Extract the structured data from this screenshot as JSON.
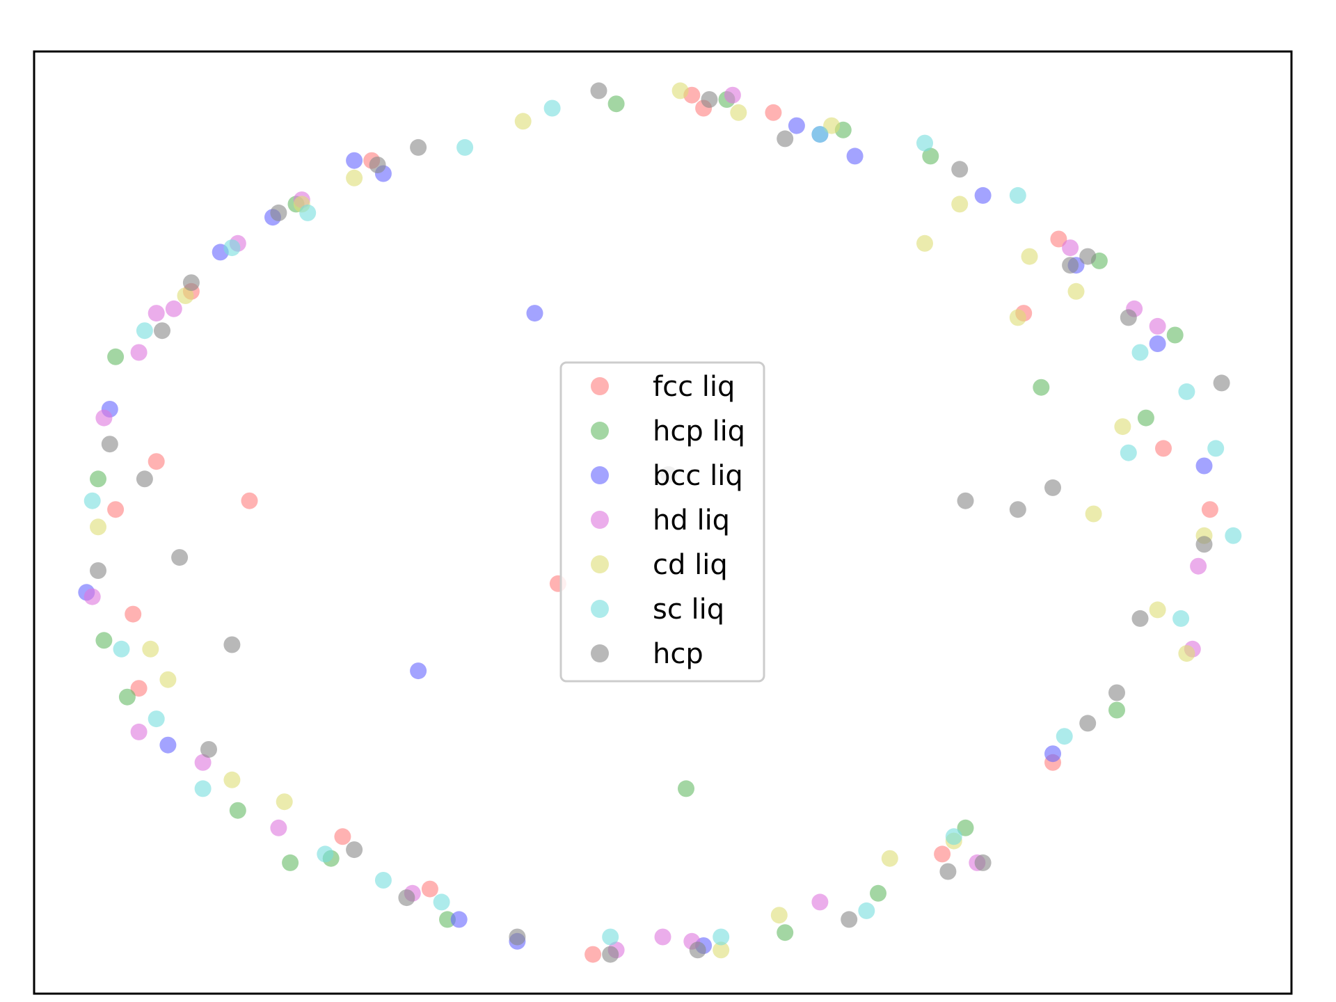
{
  "chart_data": {
    "type": "scatter",
    "title": "",
    "xlabel": "",
    "ylabel": "",
    "grid": false,
    "axes_ticks": false,
    "xlim": [
      -1.08,
      1.08
    ],
    "ylim": [
      -1.08,
      1.08
    ],
    "legend": {
      "position": "center"
    },
    "series": [
      {
        "name": "fcc liq",
        "color": "#ff7f7f",
        "points": [
          [
            -0.87,
            0.14
          ],
          [
            -0.94,
            0.03
          ],
          [
            -0.91,
            -0.21
          ],
          [
            -0.9,
            -0.38
          ],
          [
            -0.55,
            -0.72
          ],
          [
            -0.4,
            -0.84
          ],
          [
            -0.12,
            -0.99
          ],
          [
            0.07,
            0.95
          ],
          [
            0.19,
            0.94
          ],
          [
            0.68,
            0.65
          ],
          [
            0.62,
            0.48
          ],
          [
            0.86,
            0.17
          ],
          [
            0.94,
            0.03
          ],
          [
            0.67,
            -0.55
          ],
          [
            0.48,
            -0.76
          ],
          [
            -0.81,
            0.53
          ],
          [
            -0.5,
            0.83
          ],
          [
            -0.18,
            -0.14
          ],
          [
            0.05,
            0.98
          ],
          [
            -0.71,
            0.05
          ]
        ]
      },
      {
        "name": "hcp liq",
        "color": "#66bb66",
        "points": [
          [
            -0.63,
            0.73
          ],
          [
            -0.94,
            0.38
          ],
          [
            -0.96,
            -0.27
          ],
          [
            -0.92,
            -0.4
          ],
          [
            -0.73,
            -0.66
          ],
          [
            -0.64,
            -0.78
          ],
          [
            -0.37,
            -0.91
          ],
          [
            -0.08,
            0.96
          ],
          [
            0.11,
            0.97
          ],
          [
            0.31,
            0.9
          ],
          [
            0.46,
            0.84
          ],
          [
            0.75,
            0.6
          ],
          [
            0.88,
            0.43
          ],
          [
            0.83,
            0.24
          ],
          [
            0.65,
            0.31
          ],
          [
            0.78,
            -0.43
          ],
          [
            0.52,
            -0.7
          ],
          [
            0.21,
            -0.94
          ],
          [
            0.04,
            -0.61
          ],
          [
            -0.57,
            -0.77
          ],
          [
            -0.97,
            0.1
          ],
          [
            0.37,
            -0.85
          ]
        ]
      },
      {
        "name": "bcc liq",
        "color": "#6666ff",
        "points": [
          [
            -0.67,
            0.7
          ],
          [
            -0.76,
            0.62
          ],
          [
            -0.53,
            0.83
          ],
          [
            -0.99,
            -0.16
          ],
          [
            -0.85,
            -0.51
          ],
          [
            -0.48,
            0.8
          ],
          [
            -0.35,
            -0.91
          ],
          [
            -0.25,
            -0.96
          ],
          [
            0.23,
            0.91
          ],
          [
            0.27,
            0.89
          ],
          [
            0.33,
            0.84
          ],
          [
            0.55,
            0.75
          ],
          [
            0.71,
            0.59
          ],
          [
            0.85,
            0.41
          ],
          [
            0.93,
            0.13
          ],
          [
            0.67,
            -0.53
          ],
          [
            0.07,
            -0.97
          ],
          [
            -0.22,
            0.48
          ],
          [
            -0.42,
            -0.34
          ],
          [
            -0.95,
            0.26
          ]
        ]
      },
      {
        "name": "hd liq",
        "color": "#dd77dd",
        "points": [
          [
            -0.62,
            0.74
          ],
          [
            -0.73,
            0.64
          ],
          [
            -0.87,
            0.48
          ],
          [
            -0.9,
            0.39
          ],
          [
            -0.96,
            0.24
          ],
          [
            -0.98,
            -0.17
          ],
          [
            -0.9,
            -0.48
          ],
          [
            -0.79,
            -0.55
          ],
          [
            -0.66,
            -0.7
          ],
          [
            -0.43,
            -0.85
          ],
          [
            -0.08,
            -0.98
          ],
          [
            0.0,
            -0.95
          ],
          [
            0.12,
            0.98
          ],
          [
            0.7,
            0.63
          ],
          [
            0.81,
            0.49
          ],
          [
            0.85,
            0.45
          ],
          [
            0.92,
            -0.1
          ],
          [
            0.91,
            -0.29
          ],
          [
            0.54,
            -0.78
          ],
          [
            0.27,
            -0.87
          ],
          [
            0.05,
            -0.96
          ],
          [
            -0.84,
            0.49
          ]
        ]
      },
      {
        "name": "cd liq",
        "color": "#dddd77",
        "points": [
          [
            -0.24,
            0.92
          ],
          [
            -0.53,
            0.79
          ],
          [
            -0.62,
            0.73
          ],
          [
            -0.82,
            0.52
          ],
          [
            -0.97,
            -0.01
          ],
          [
            -0.88,
            -0.29
          ],
          [
            -0.74,
            -0.59
          ],
          [
            -0.65,
            -0.64
          ],
          [
            0.03,
            0.99
          ],
          [
            0.13,
            0.94
          ],
          [
            0.29,
            0.91
          ],
          [
            0.51,
            0.73
          ],
          [
            0.45,
            0.64
          ],
          [
            0.63,
            0.61
          ],
          [
            0.61,
            0.47
          ],
          [
            0.71,
            0.53
          ],
          [
            0.79,
            0.22
          ],
          [
            0.74,
            0.02
          ],
          [
            0.93,
            -0.03
          ],
          [
            0.9,
            -0.3
          ],
          [
            0.5,
            -0.73
          ],
          [
            0.39,
            -0.77
          ],
          [
            0.2,
            -0.9
          ],
          [
            0.1,
            -0.98
          ],
          [
            0.85,
            -0.2
          ],
          [
            -0.85,
            -0.36
          ]
        ]
      },
      {
        "name": "sc liq",
        "color": "#77dddd",
        "points": [
          [
            -0.19,
            0.95
          ],
          [
            -0.34,
            0.86
          ],
          [
            -0.61,
            0.71
          ],
          [
            -0.74,
            0.63
          ],
          [
            -0.89,
            0.44
          ],
          [
            -0.98,
            0.05
          ],
          [
            -0.93,
            -0.29
          ],
          [
            -0.87,
            -0.45
          ],
          [
            -0.79,
            -0.61
          ],
          [
            -0.58,
            -0.76
          ],
          [
            -0.48,
            -0.82
          ],
          [
            -0.38,
            -0.87
          ],
          [
            -0.09,
            -0.95
          ],
          [
            0.27,
            0.89
          ],
          [
            0.45,
            0.87
          ],
          [
            0.61,
            0.75
          ],
          [
            0.82,
            0.39
          ],
          [
            0.9,
            0.3
          ],
          [
            0.95,
            0.17
          ],
          [
            0.98,
            -0.03
          ],
          [
            0.8,
            0.16
          ],
          [
            0.89,
            -0.22
          ],
          [
            0.69,
            -0.49
          ],
          [
            0.5,
            -0.72
          ],
          [
            0.35,
            -0.89
          ],
          [
            0.1,
            -0.95
          ]
        ]
      },
      {
        "name": "hcp",
        "color": "#888888",
        "points": [
          [
            -0.42,
            0.86
          ],
          [
            -0.49,
            0.82
          ],
          [
            -0.66,
            0.71
          ],
          [
            -0.81,
            0.55
          ],
          [
            -0.86,
            0.44
          ],
          [
            -0.95,
            0.18
          ],
          [
            -0.97,
            -0.11
          ],
          [
            -0.83,
            -0.08
          ],
          [
            -0.74,
            -0.28
          ],
          [
            -0.78,
            -0.52
          ],
          [
            -0.53,
            -0.75
          ],
          [
            -0.44,
            -0.86
          ],
          [
            -0.25,
            -0.95
          ],
          [
            -0.09,
            -0.99
          ],
          [
            -0.11,
            0.99
          ],
          [
            0.08,
            0.97
          ],
          [
            0.21,
            0.88
          ],
          [
            0.51,
            0.81
          ],
          [
            0.7,
            0.59
          ],
          [
            0.73,
            0.61
          ],
          [
            0.8,
            0.47
          ],
          [
            0.96,
            0.32
          ],
          [
            0.93,
            -0.05
          ],
          [
            0.78,
            -0.39
          ],
          [
            0.61,
            0.03
          ],
          [
            0.52,
            0.05
          ],
          [
            0.67,
            0.08
          ],
          [
            0.82,
            -0.22
          ],
          [
            0.73,
            -0.46
          ],
          [
            0.49,
            -0.8
          ],
          [
            0.55,
            -0.78
          ],
          [
            0.32,
            -0.91
          ],
          [
            0.06,
            -0.98
          ],
          [
            0.01,
            0.11
          ],
          [
            -0.89,
            0.1
          ]
        ]
      }
    ]
  }
}
